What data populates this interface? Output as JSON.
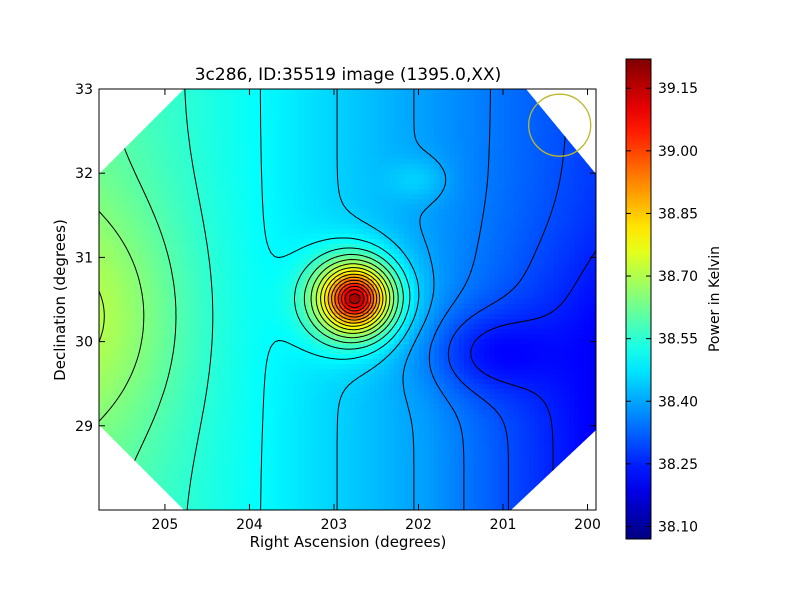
{
  "chart_data": {
    "type": "heatmap",
    "title": "3c286, ID:35519 image (1395.0,XX)",
    "xlabel": "Right Ascension (degrees)",
    "ylabel": "Declination (degrees)",
    "colorbar_label": "Power in Kelvin",
    "xlim": [
      205.78,
      199.9
    ],
    "ylim": [
      28.0,
      33.0
    ],
    "x_ticks": [
      205,
      204,
      203,
      202,
      201,
      200
    ],
    "y_ticks": [
      29,
      30,
      31,
      32,
      33
    ],
    "colorbar": {
      "range": [
        38.07,
        39.22
      ],
      "ticks": [
        "39.15",
        "39.00",
        "38.85",
        "38.70",
        "38.55",
        "38.40",
        "38.25",
        "38.10"
      ],
      "colormap": "jet"
    },
    "field_footprint": "octagon",
    "beam_circle": {
      "ra": 200.33,
      "dec": 32.57,
      "color": "#bdb72a"
    },
    "peak": {
      "ra": 202.75,
      "dec": 30.51,
      "value": 39.2
    },
    "minimum": {
      "ra": 201.2,
      "dec": 29.87,
      "value": 38.08
    },
    "secondary_bump": {
      "ra": 202.0,
      "dec": 31.92,
      "value": 38.47
    },
    "west_high": {
      "ra": 205.85,
      "dec": 30.3,
      "value": 38.62
    },
    "contour_interval": 0.05
  }
}
